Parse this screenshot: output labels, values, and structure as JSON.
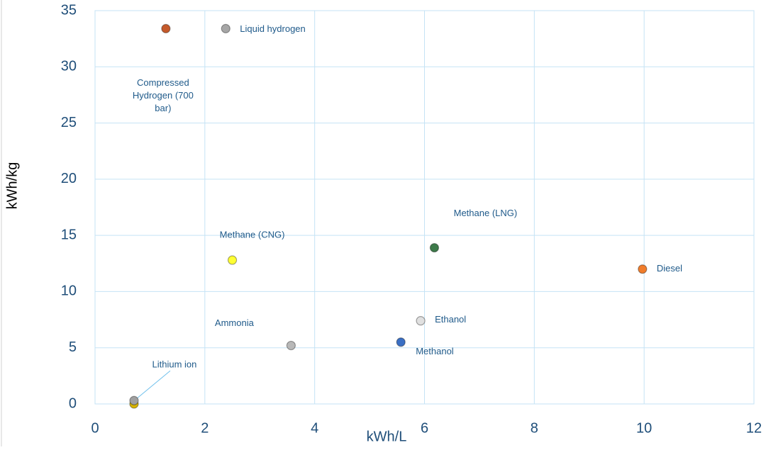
{
  "chart_data": {
    "type": "scatter",
    "xlabel": "kWh/L",
    "ylabel": "kWh/kg",
    "xlim": [
      0,
      12
    ],
    "ylim": [
      0,
      35
    ],
    "xticks": [
      0,
      2,
      4,
      6,
      8,
      10,
      12
    ],
    "yticks": [
      0,
      5,
      10,
      15,
      20,
      25,
      30,
      35
    ],
    "grid": true,
    "points": [
      {
        "label": "Compressed Hydrogen (700 bar)",
        "x": 1.29,
        "y": 33.4,
        "color": "#c55a2b"
      },
      {
        "label": "Liquid hydrogen",
        "x": 2.38,
        "y": 33.4,
        "color": "#a6a6a6"
      },
      {
        "label": "Methane (CNG)",
        "x": 2.5,
        "y": 12.8,
        "color": "#ffff33"
      },
      {
        "label": "Methane (LNG)",
        "x": 6.18,
        "y": 13.9,
        "color": "#3d7a4a"
      },
      {
        "label": "Diesel",
        "x": 9.97,
        "y": 12.0,
        "color": "#f07d2c"
      },
      {
        "label": "Ethanol",
        "x": 5.93,
        "y": 7.4,
        "color": "#e0e0e0"
      },
      {
        "label": "Methanol",
        "x": 5.57,
        "y": 5.5,
        "color": "#3a6fc4"
      },
      {
        "label": "Ammonia",
        "x": 3.57,
        "y": 5.2,
        "color": "#b8b8b8"
      },
      {
        "label": null,
        "x": 0.71,
        "y": 0.0,
        "color": "#d8b400"
      },
      {
        "label": "Lithium ion",
        "x": 0.71,
        "y": 0.3,
        "color": "#a0a0a0"
      }
    ]
  }
}
